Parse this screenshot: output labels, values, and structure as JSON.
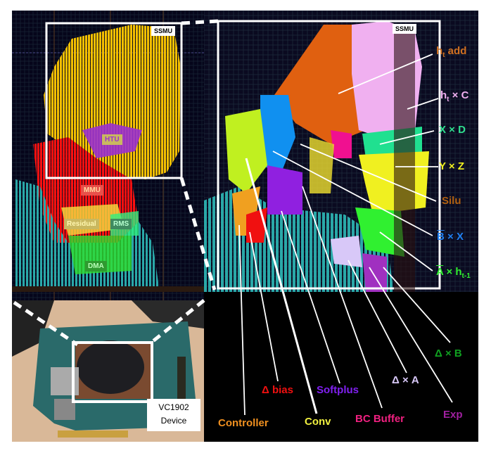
{
  "left_floorplan": {
    "ssmu_label": "SSMU",
    "blocks": [
      {
        "name": "HTU",
        "color": "#9b30d0",
        "text_color": "#d9b3ff"
      },
      {
        "name": "MMU",
        "color": "#e8504a",
        "text_color": "#ffd9a0"
      },
      {
        "name": "Residual",
        "color": "#d9c05a",
        "text_color": "#fff7b0"
      },
      {
        "name": "RMS",
        "color": "#3fa060",
        "text_color": "#b8ffd0"
      },
      {
        "name": "DMA",
        "color": "#2f9a30",
        "text_color": "#b8ffb8"
      }
    ]
  },
  "photo": {
    "device_label_line1": "VC1902",
    "device_label_line2": "Device"
  },
  "right_floorplan": {
    "ssmu_label": "SSMU",
    "labels": {
      "ht_add": {
        "main": "h",
        "sub": "t",
        "rest": " add",
        "color": "#d07020"
      },
      "ht_c": {
        "main": "h",
        "sub": "t",
        "rest": " × C",
        "color": "#f0b0f0"
      },
      "x_d": {
        "text": "X × D",
        "color": "#30e090"
      },
      "y_z": {
        "text": "Y × Z",
        "color": "#f0f020"
      },
      "silu": {
        "text": "Silu",
        "color": "#b06010"
      },
      "b_x": {
        "bar": "B",
        "rest": " × X",
        "color": "#2080f0"
      },
      "a_h": {
        "bar": "A",
        "rest": " × h",
        "sub": "t-1",
        "color": "#30f030"
      },
      "delta_b": {
        "text": "Δ × B",
        "color": "#10a020"
      },
      "exp": {
        "text": "Exp",
        "color": "#a020a0"
      },
      "delta_a": {
        "text": "Δ × A",
        "color": "#d8c8f8"
      },
      "bc_buffer": {
        "text": "BC Buffer",
        "color": "#f02080"
      },
      "softplus": {
        "text": "Softplus",
        "color": "#8020f0"
      },
      "conv": {
        "text": "Conv",
        "color": "#f0f040"
      },
      "delta_bias": {
        "text": "Δ bias",
        "color": "#f01010"
      },
      "controller": {
        "text": "Controller",
        "color": "#f09020"
      }
    }
  }
}
